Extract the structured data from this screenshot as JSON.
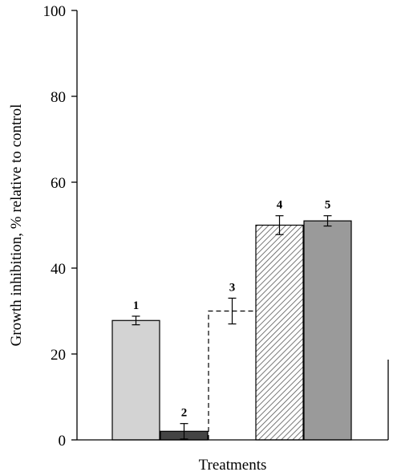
{
  "chart_data": {
    "type": "bar",
    "title": "",
    "xlabel": "Treatments",
    "ylabel": "Growth inhibition, % relative to control",
    "ylim": [
      0,
      100
    ],
    "yticks": [
      0,
      20,
      40,
      60,
      80,
      100
    ],
    "grid": false,
    "legend": "none",
    "categories": [
      "1",
      "2",
      "3",
      "4",
      "5"
    ],
    "values": [
      27.8,
      2.0,
      30.0,
      50.0,
      51.0
    ],
    "errors": [
      1.0,
      1.8,
      3.0,
      2.2,
      1.2
    ],
    "styles": [
      {
        "fill": "#d3d3d3",
        "pattern": "solid",
        "outline": "solid"
      },
      {
        "fill": "#444444",
        "pattern": "solid",
        "outline": "solid"
      },
      {
        "fill": "#ffffff",
        "pattern": "none",
        "outline": "dashed"
      },
      {
        "fill": "#ffffff",
        "pattern": "diagonal-hatch",
        "outline": "solid"
      },
      {
        "fill": "#9a9a9a",
        "pattern": "solid",
        "outline": "solid"
      }
    ]
  }
}
